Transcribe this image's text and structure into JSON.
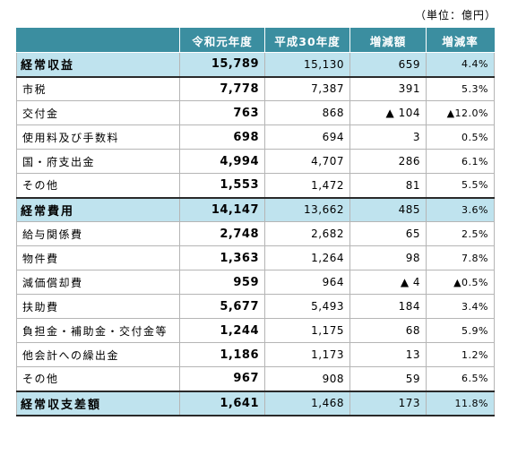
{
  "unit_label": "（単位：億円）",
  "header": {
    "item": "",
    "current": "令和元年度",
    "previous": "平成30年度",
    "change": "増減額",
    "rate": "増減率"
  },
  "rows": [
    {
      "type": "section",
      "label": "経常収益",
      "current": "15,789",
      "previous": "15,130",
      "change": "659",
      "rate": "4.4%"
    },
    {
      "type": "item",
      "label": "市税",
      "current": "7,778",
      "previous": "7,387",
      "change": "391",
      "rate": "5.3%"
    },
    {
      "type": "item",
      "label": "交付金",
      "current": "763",
      "previous": "868",
      "change": "▲ 104",
      "rate": "▲12.0%"
    },
    {
      "type": "item",
      "label": "使用料及び手数料",
      "current": "698",
      "previous": "694",
      "change": "3",
      "rate": "0.5%"
    },
    {
      "type": "item",
      "label": "国・府支出金",
      "current": "4,994",
      "previous": "4,707",
      "change": "286",
      "rate": "6.1%"
    },
    {
      "type": "item",
      "label": "その他",
      "current": "1,553",
      "previous": "1,472",
      "change": "81",
      "rate": "5.5%"
    },
    {
      "type": "section",
      "label": "経常費用",
      "current": "14,147",
      "previous": "13,662",
      "change": "485",
      "rate": "3.6%"
    },
    {
      "type": "item",
      "label": "給与関係費",
      "current": "2,748",
      "previous": "2,682",
      "change": "65",
      "rate": "2.5%"
    },
    {
      "type": "item",
      "label": "物件費",
      "current": "1,363",
      "previous": "1,264",
      "change": "98",
      "rate": "7.8%"
    },
    {
      "type": "item",
      "label": "減価償却費",
      "current": "959",
      "previous": "964",
      "change": "▲ 4",
      "rate": "▲0.5%"
    },
    {
      "type": "item",
      "label": "扶助費",
      "current": "5,677",
      "previous": "5,493",
      "change": "184",
      "rate": "3.4%"
    },
    {
      "type": "item",
      "label": "負担金・補助金・交付金等",
      "current": "1,244",
      "previous": "1,175",
      "change": "68",
      "rate": "5.9%"
    },
    {
      "type": "item",
      "label": "他会計への繰出金",
      "current": "1,186",
      "previous": "1,173",
      "change": "13",
      "rate": "1.2%"
    },
    {
      "type": "item",
      "label": "その他",
      "current": "967",
      "previous": "908",
      "change": "59",
      "rate": "6.5%"
    },
    {
      "type": "section",
      "label": "経常収支差額",
      "current": "1,641",
      "previous": "1,468",
      "change": "173",
      "rate": "11.8%"
    }
  ]
}
